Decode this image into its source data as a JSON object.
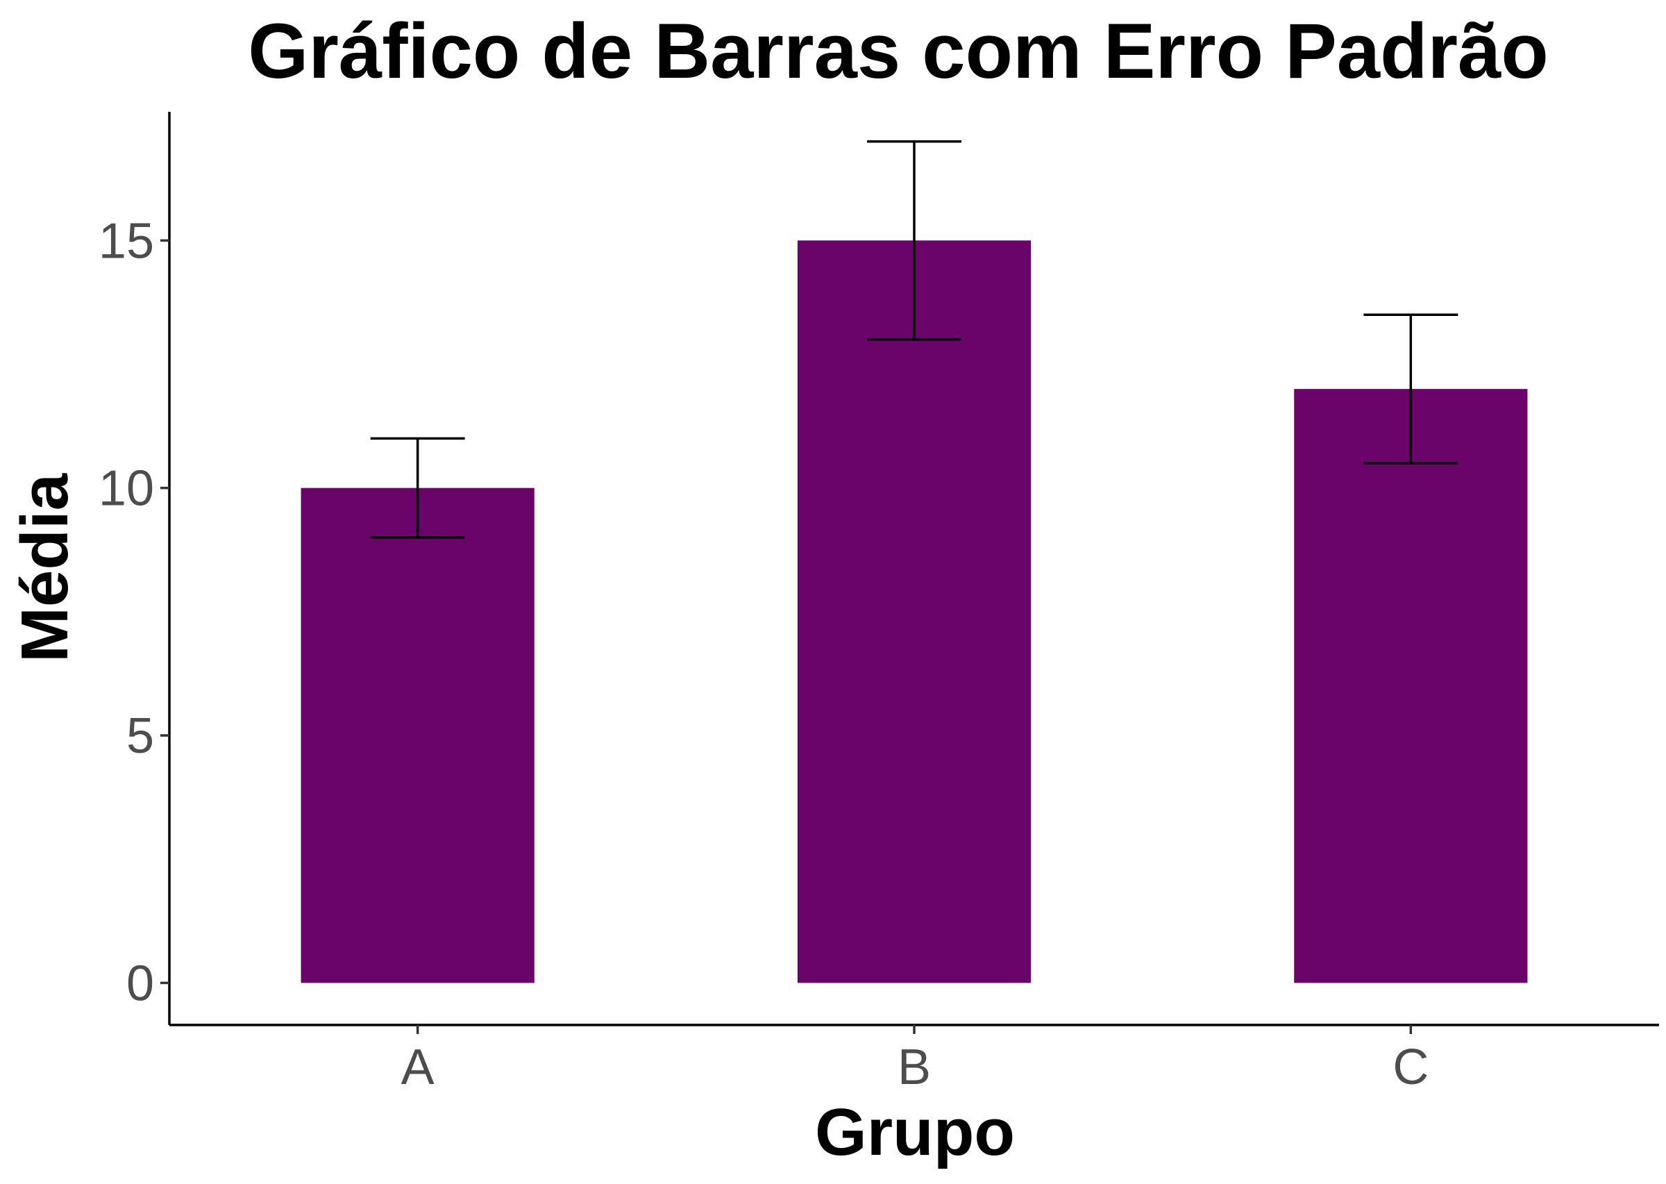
{
  "chart_data": {
    "type": "bar",
    "title": "Gráfico de Barras com Erro Padrão",
    "xlabel": "Grupo",
    "ylabel": "Média",
    "categories": [
      "A",
      "B",
      "C"
    ],
    "values": [
      10,
      15,
      12
    ],
    "error": [
      1,
      2,
      1.5
    ],
    "ylim": [
      -0.85,
      17.6
    ],
    "yticks": [
      0,
      5,
      10,
      15
    ],
    "ytick_labels": [
      "0",
      "5",
      "10",
      "15"
    ],
    "grid": false,
    "legend": "none",
    "colors": {
      "bar": "#6a046b",
      "errorbar": "#000000",
      "axis": "#000000",
      "tick_label": "#4d4d4d"
    }
  }
}
